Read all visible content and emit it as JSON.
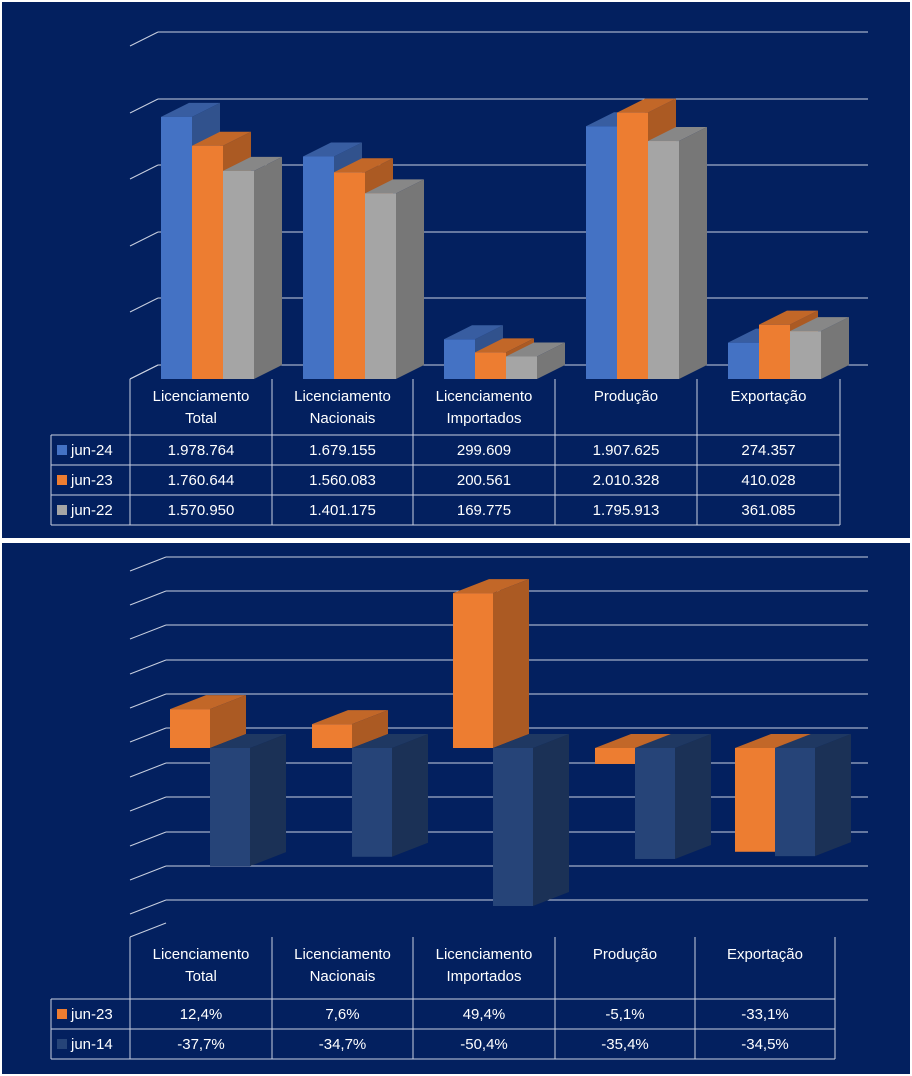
{
  "colors": {
    "background": "#03205f",
    "grid": "#c8cfe0",
    "table_text": "#ffffff",
    "series_jun24": "#4472c4",
    "series_jun23": "#ed7d31",
    "series_jun22": "#a5a5a5",
    "series_jun14": "#264478"
  },
  "chart_data": [
    {
      "type": "bar",
      "style": "3d-clustered-column-with-data-table",
      "categories": [
        [
          "Licenciamento",
          "Total"
        ],
        [
          "Licenciamento",
          "Nacionais"
        ],
        [
          "Licenciamento",
          "Importados"
        ],
        [
          "Produção"
        ],
        [
          "Exportação"
        ]
      ],
      "series": [
        {
          "name": "jun-24",
          "color": "#4472c4",
          "values": [
            1978764,
            1679155,
            299609,
            1907625,
            274357
          ],
          "labels": [
            "1.978.764",
            "1.679.155",
            "299.609",
            "1.907.625",
            "274.357"
          ]
        },
        {
          "name": "jun-23",
          "color": "#ed7d31",
          "values": [
            1760644,
            1560083,
            200561,
            2010328,
            410028
          ],
          "labels": [
            "1.760.644",
            "1.560.083",
            "200.561",
            "2.010.328",
            "410.028"
          ]
        },
        {
          "name": "jun-22",
          "color": "#a5a5a5",
          "values": [
            1570950,
            1401175,
            169775,
            1795913,
            361085
          ],
          "labels": [
            "1.570.950",
            "1.401.175",
            "169.775",
            "1.795.913",
            "361.085"
          ]
        }
      ],
      "ylim": [
        0,
        2500000
      ],
      "grid": true,
      "y_tick_labels_visible": false,
      "legend": "data-table"
    },
    {
      "type": "bar",
      "style": "3d-column-with-data-table",
      "categories": [
        [
          "Licenciamento",
          "Total"
        ],
        [
          "Licenciamento",
          "Nacionais"
        ],
        [
          "Licenciamento",
          "Importados"
        ],
        [
          "Produção"
        ],
        [
          "Exportação"
        ]
      ],
      "series": [
        {
          "name": "jun-23",
          "color": "#ed7d31",
          "values": [
            12.4,
            7.6,
            49.4,
            -5.1,
            -33.1
          ],
          "labels": [
            "12,4%",
            "7,6%",
            "49,4%",
            "-5,1%",
            "-33,1%"
          ]
        },
        {
          "name": "jun-14",
          "color": "#264478",
          "values": [
            -37.7,
            -34.7,
            -50.4,
            -35.4,
            -34.5
          ],
          "labels": [
            "-37,7%",
            "-34,7%",
            "-50,4%",
            "-35,4%",
            "-34,5%"
          ]
        }
      ],
      "ylim": [
        -60,
        60
      ],
      "grid": true,
      "y_tick_labels_visible": false,
      "legend": "data-table"
    }
  ]
}
